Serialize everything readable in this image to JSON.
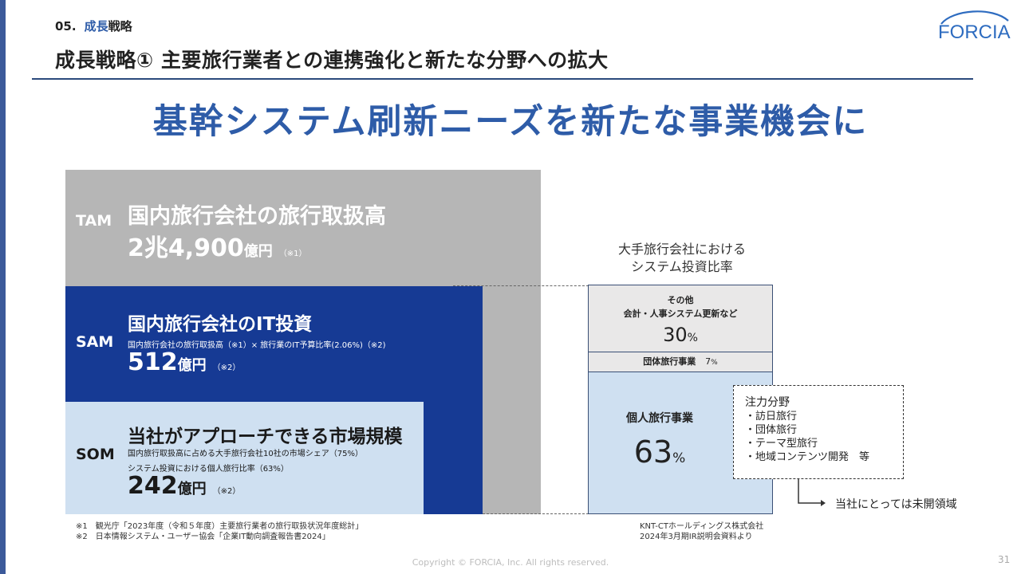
{
  "header": {
    "section_number": "05.",
    "section_highlight": "成長",
    "section_rest": "戦略",
    "title": "成長戦略① 主要旅行業者との連携強化と新たな分野への拡大",
    "logo_text": "FORCIA"
  },
  "headline": "基幹システム刷新ニーズを新たな事業機会に",
  "market": {
    "tam": {
      "label": "TAM",
      "title": "国内旅行会社の旅行取扱高",
      "amount": "2兆4,900",
      "unit": "億円",
      "note": "（※1）"
    },
    "sam": {
      "label": "SAM",
      "title": "国内旅行会社のIT投資",
      "formula": "国内旅行会社の旅行取扱高（※1）× 旅行業のIT予算比率(2.06%)（※2)",
      "amount": "512",
      "unit": "億円",
      "note": "（※2）"
    },
    "som": {
      "label": "SOM",
      "title": "当社がアプローチできる市場規模",
      "formula_line1": "国内旅行取扱高に占める大手旅行会社10社の市場シェア（75%）",
      "formula_line2": "システム投資における個人旅行比率（63%）",
      "amount": "242",
      "unit": "億円",
      "note": "（※2）"
    }
  },
  "ratio_chart": {
    "title_line1": "大手旅行会社における",
    "title_line2": "システム投資比率",
    "other": {
      "label_line1": "その他",
      "label_line2": "会計・人事システム更新など",
      "value": "30",
      "unit": "%"
    },
    "group": {
      "label": "団体旅行事業",
      "value": "7",
      "unit": "%"
    },
    "individual": {
      "label": "個人旅行事業",
      "value": "63",
      "unit": "%"
    },
    "focus": {
      "title": "注力分野",
      "items": [
        "・訪日旅行",
        "・団体旅行",
        "・テーマ型旅行",
        "・地域コンテンツ開発　等"
      ]
    },
    "arrow_label": "当社にとっては未開領域",
    "source_line1": "KNT-CTホールディングス株式会社",
    "source_line2": "2024年3月期IR説明会資料より"
  },
  "footnotes": {
    "note1": "※1　観光庁「2023年度（令和５年度）主要旅行業者の旅行取扱状況年度総計」",
    "note2": "※2　日本情報システム・ユーザー協会「企業IT動向調査報告書2024」"
  },
  "footer": {
    "copyright": "Copyright © FORCIA, Inc. All rights reserved.",
    "page_number": "31"
  },
  "colors": {
    "accent": "#2e5ca8",
    "tam": "#b6b6b6",
    "sam": "#163a94",
    "som": "#cfe0f1",
    "left_bar": "#3c5a9a"
  }
}
